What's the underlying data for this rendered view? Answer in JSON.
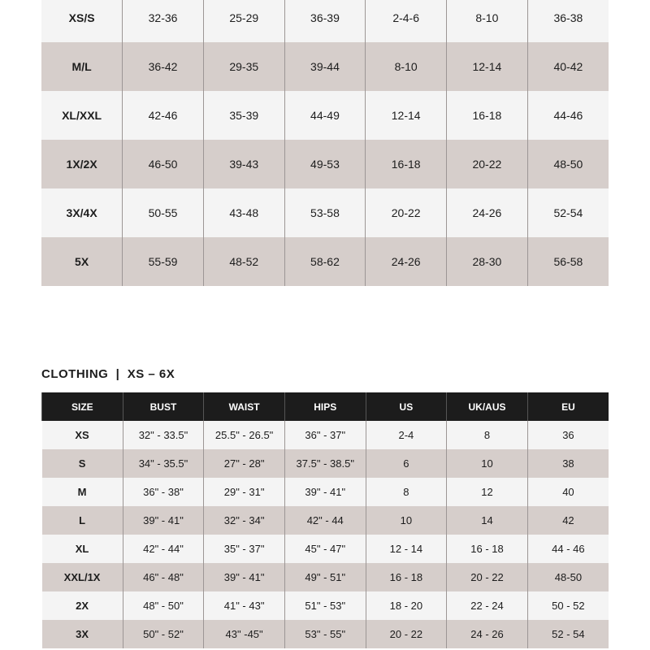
{
  "top_table": {
    "rows": [
      [
        "XS/S",
        "32-36",
        "25-29",
        "36-39",
        "2-4-6",
        "8-10",
        "36-38"
      ],
      [
        "M/L",
        "36-42",
        "29-35",
        "39-44",
        "8-10",
        "12-14",
        "40-42"
      ],
      [
        "XL/XXL",
        "42-46",
        "35-39",
        "44-49",
        "12-14",
        "16-18",
        "44-46"
      ],
      [
        "1X/2X",
        "46-50",
        "39-43",
        "49-53",
        "16-18",
        "20-22",
        "48-50"
      ],
      [
        "3X/4X",
        "50-55",
        "43-48",
        "53-58",
        "20-22",
        "24-26",
        "52-54"
      ],
      [
        "5X",
        "55-59",
        "48-52",
        "58-62",
        "24-26",
        "28-30",
        "56-58"
      ]
    ]
  },
  "clothing_table": {
    "title": "CLOTHING  |  XS – 6X",
    "headers": [
      "SIZE",
      "BUST",
      "WAIST",
      "HIPS",
      "US",
      "UK/AUS",
      "EU"
    ],
    "rows": [
      [
        "XS",
        "32\" - 33.5\"",
        "25.5\" - 26.5\"",
        "36\" - 37\"",
        "2-4",
        "8",
        "36"
      ],
      [
        "S",
        "34\" - 35.5\"",
        "27\" - 28\"",
        "37.5\" - 38.5\"",
        "6",
        "10",
        "38"
      ],
      [
        "M",
        "36\" - 38\"",
        "29\" - 31\"",
        "39\" - 41\"",
        "8",
        "12",
        "40"
      ],
      [
        "L",
        "39\" - 41\"",
        "32\" - 34\"",
        "42\" - 44",
        "10",
        "14",
        "42"
      ],
      [
        "XL",
        "42\" - 44\"",
        "35\" - 37\"",
        "45\" - 47\"",
        "12 - 14",
        "16 - 18",
        "44 - 46"
      ],
      [
        "XXL/1X",
        "46\" - 48\"",
        "39\" - 41\"",
        "49\" - 51\"",
        "16 - 18",
        "20 - 22",
        "48-50"
      ],
      [
        "2X",
        "48\" - 50\"",
        "41\" - 43\"",
        "51\" - 53\"",
        "18 - 20",
        "22 - 24",
        "50 - 52"
      ],
      [
        "3X",
        "50\" - 52\"",
        "43\" -45\"",
        "53\" - 55\"",
        "20 - 22",
        "24 - 26",
        "52 - 54"
      ]
    ]
  },
  "colors": {
    "header_bg": "#1c1c1c",
    "row_light": "#f4f4f4",
    "row_shaded": "#d6cecb"
  }
}
